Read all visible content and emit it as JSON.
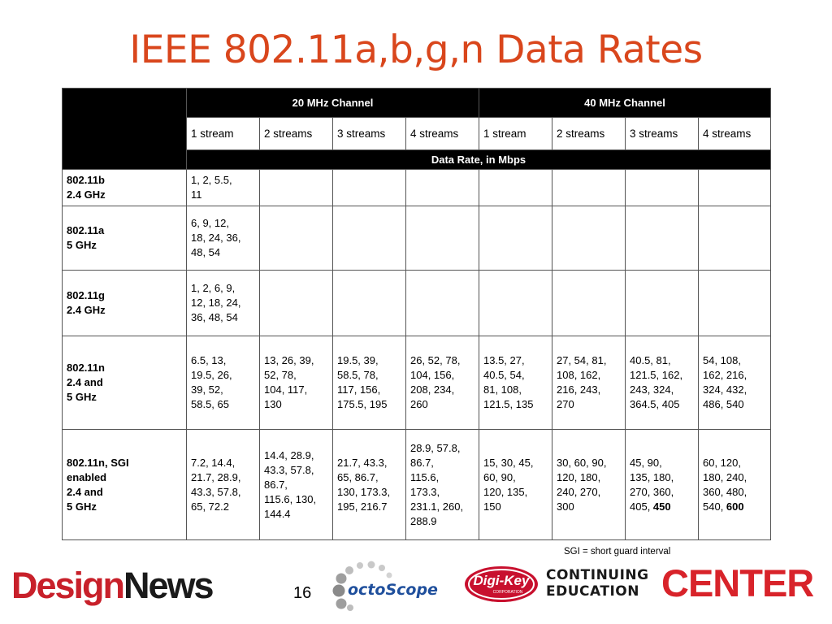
{
  "title": "IEEE 802.11a,b,g,n Data Rates",
  "table": {
    "channel_20": "20 MHz Channel",
    "channel_40": "40 MHz Channel",
    "streams": [
      "1 stream",
      "2 streams",
      "3 streams",
      "4 streams",
      "1 stream",
      "2 streams",
      "3 streams",
      "4 streams"
    ],
    "units": "Data Rate, in Mbps",
    "rows": [
      {
        "std": "802.11b\n2.4 GHz",
        "cells": [
          "1, 2, 5.5,\n11",
          "",
          "",
          "",
          "",
          "",
          "",
          ""
        ]
      },
      {
        "std": "802.11a\n5 GHz",
        "cells": [
          "6, 9, 12,\n18, 24, 36,\n48, 54",
          "",
          "",
          "",
          "",
          "",
          "",
          ""
        ]
      },
      {
        "std": "802.11g\n2.4 GHz",
        "cells": [
          "1, 2, 6, 9,\n12, 18, 24,\n36, 48, 54",
          "",
          "",
          "",
          "",
          "",
          "",
          ""
        ]
      },
      {
        "std": "802.11n\n2.4 and\n5 GHz",
        "cells": [
          "6.5, 13,\n19.5, 26,\n39, 52,\n58.5, 65",
          "13, 26, 39,\n52, 78,\n104, 117,\n130",
          "19.5, 39,\n58.5, 78,\n117, 156,\n175.5, 195",
          "26, 52, 78,\n104, 156,\n208, 234,\n260",
          "13.5, 27,\n40.5, 54,\n81, 108,\n121.5, 135",
          "27, 54, 81,\n108, 162,\n216, 243,\n270",
          "40.5, 81,\n121.5, 162,\n243, 324,\n364.5, 405",
          "54, 108,\n162, 216,\n324, 432,\n486, 540"
        ]
      },
      {
        "std": "802.11n, SGI\nenabled\n2.4 and\n5 GHz",
        "cells": [
          "7.2, 14.4,\n21.7, 28.9,\n43.3, 57.8,\n65, 72.2",
          "14.4, 28.9,\n43.3, 57.8,\n86.7,\n115.6, 130,\n144.4",
          "21.7, 43.3,\n65, 86.7,\n130, 173.3,\n195, 216.7",
          "28.9, 57.8,\n86.7,\n115.6,\n173.3,\n231.1, 260,\n288.9",
          "15, 30, 45,\n60, 90,\n120, 135,\n150",
          "30, 60, 90,\n120, 180,\n240, 270,\n300",
          "45, 90,\n135, 180,\n270, 360,\n405, ",
          "60, 120,\n180, 240,\n360, 480,\n540, "
        ],
        "bold_tail": [
          "",
          "",
          "",
          "",
          "",
          "",
          "450",
          "600"
        ]
      }
    ]
  },
  "footnote": "SGI = short guard interval",
  "page_number": "16",
  "logos": {
    "designnews_a": "Design",
    "designnews_b": "News",
    "octoscope": "octoScope",
    "digikey": "Digi-Key",
    "digikey_sub": "CORPORATION",
    "cec_line1": "CONTINUING",
    "cec_line2": "EDUCATION",
    "cec_big": "CENTER"
  },
  "colors": {
    "title": "#d9461c",
    "header_bg": "#000000",
    "designnews_red": "#c8202a",
    "octoscope_blue": "#1f4f9c",
    "center_red": "#d8232a"
  }
}
